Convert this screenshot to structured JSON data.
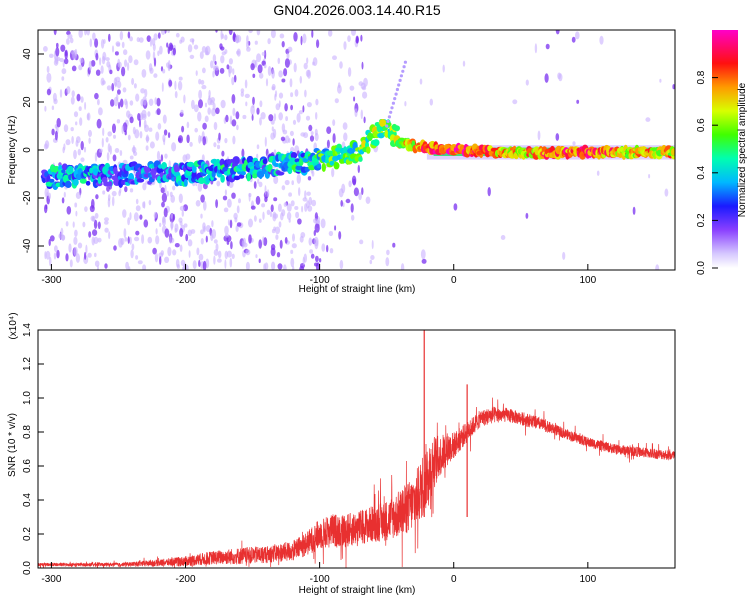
{
  "title": "GN04.2026.003.14.40.R15",
  "colors": {
    "snr_line": "#e83030",
    "track": "#5a10e8",
    "scatter": "#9a5af0",
    "colorbar": [
      "#d6c8ff",
      "#8a40ff",
      "#1a1aff",
      "#00d8ff",
      "#00ff60",
      "#d8ff00",
      "#ff9a00",
      "#ff1010",
      "#ff00c8"
    ]
  },
  "chart_data": [
    {
      "type": "heatmap",
      "xlabel": "Height of straight line (km)",
      "ylabel": "Frequency (Hz)",
      "xlim": [
        -310,
        165
      ],
      "ylim": [
        -50,
        50
      ],
      "xticks": [
        -300,
        -200,
        -100,
        0,
        100
      ],
      "xtick_labels": [
        "-300",
        "-200",
        "-100",
        "0",
        "100"
      ],
      "yticks": [
        -40,
        -20,
        0,
        20,
        40
      ],
      "ytick_labels": [
        "-40",
        "-20",
        "0",
        "20",
        "40"
      ],
      "colorbar": {
        "label": "Normalized spectral amplitude",
        "range": [
          0,
          1
        ],
        "ticks": [
          "0.0",
          "0.2",
          "0.4",
          "0.6",
          "0.8"
        ]
      },
      "ridge": {
        "x": [
          -305,
          -280,
          -250,
          -220,
          -200,
          -170,
          -140,
          -110,
          -90,
          -70,
          -55,
          -48,
          -40,
          -20,
          0,
          40,
          80,
          100,
          130,
          165
        ],
        "freq_hz": [
          -11,
          -11,
          -10,
          -10,
          -10,
          -8,
          -7,
          -5,
          -3,
          0,
          8,
          10,
          3,
          1,
          0,
          -1,
          -1,
          -1,
          -1,
          -1
        ],
        "amplitude": [
          0.3,
          0.35,
          0.2,
          0.25,
          0.3,
          0.35,
          0.3,
          0.4,
          0.45,
          0.5,
          0.55,
          0.5,
          0.6,
          0.8,
          0.9,
          0.7,
          0.8,
          0.85,
          0.7,
          0.7
        ]
      }
    },
    {
      "type": "line",
      "xlabel": "Height of straight line (km)",
      "ylabel": "SNR (10 * v/v)",
      "scale_label": "(x10⁴)",
      "xlim": [
        -310,
        165
      ],
      "ylim": [
        0,
        1.4
      ],
      "xticks": [
        -300,
        -200,
        -100,
        0,
        100
      ],
      "xtick_labels": [
        "-300",
        "-200",
        "-100",
        "0",
        "100"
      ],
      "yticks": [
        0,
        0.2,
        0.4,
        0.6,
        0.8,
        1.0,
        1.2,
        1.4
      ],
      "ytick_labels": [
        "0.0",
        "0.2",
        "0.4",
        "0.6",
        "0.8",
        "1.0",
        "1.2",
        "1.4"
      ],
      "series": [
        {
          "name": "SNR",
          "x": [
            -310,
            -280,
            -250,
            -220,
            -200,
            -180,
            -160,
            -140,
            -120,
            -110,
            -100,
            -90,
            -80,
            -70,
            -60,
            -50,
            -40,
            -30,
            -25,
            -20,
            -15,
            -10,
            -5,
            0,
            10,
            20,
            30,
            40,
            50,
            60,
            80,
            100,
            120,
            140,
            165
          ],
          "mean": [
            0.02,
            0.02,
            0.02,
            0.03,
            0.04,
            0.06,
            0.07,
            0.08,
            0.1,
            0.14,
            0.2,
            0.22,
            0.22,
            0.24,
            0.26,
            0.28,
            0.32,
            0.38,
            0.45,
            0.55,
            0.62,
            0.66,
            0.7,
            0.72,
            0.8,
            0.88,
            0.9,
            0.9,
            0.88,
            0.86,
            0.8,
            0.74,
            0.7,
            0.68,
            0.66
          ],
          "noise": [
            0.01,
            0.01,
            0.01,
            0.02,
            0.03,
            0.04,
            0.05,
            0.05,
            0.06,
            0.07,
            0.09,
            0.1,
            0.1,
            0.1,
            0.11,
            0.12,
            0.14,
            0.16,
            0.18,
            0.2,
            0.16,
            0.12,
            0.1,
            0.08,
            0.06,
            0.05,
            0.05,
            0.04,
            0.04,
            0.04,
            0.03,
            0.03,
            0.03,
            0.03,
            0.03
          ]
        }
      ],
      "annotations": [
        {
          "x": -22,
          "y": 1.4,
          "text": "spike"
        },
        {
          "x": 10,
          "y": 1.08,
          "text": "spike"
        }
      ]
    }
  ]
}
